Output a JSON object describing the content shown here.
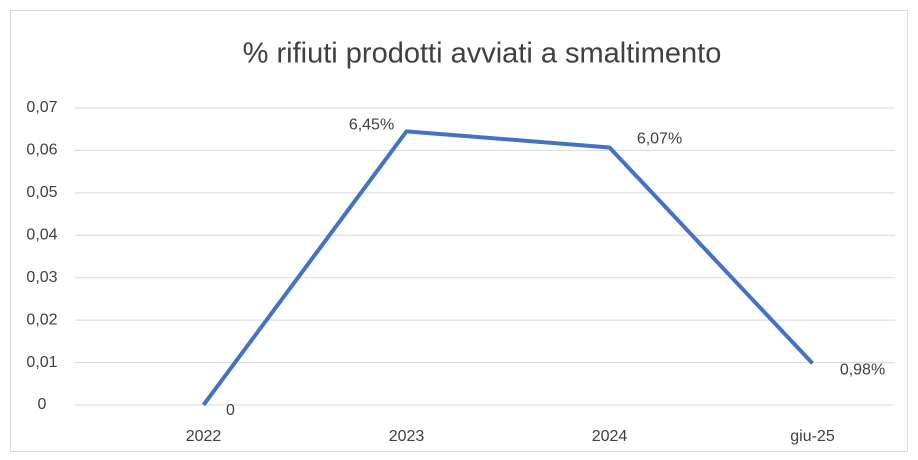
{
  "chart_data": {
    "type": "line",
    "title": "% rifiuti prodotti avviati a smaltimento",
    "categories": [
      "2022",
      "2023",
      "2024",
      "giu-25"
    ],
    "values": [
      0,
      0.0645,
      0.0607,
      0.0098
    ],
    "value_labels": [
      "0",
      "6,45%",
      "6,07%",
      "0,98%"
    ],
    "color": "#4472c4",
    "ylim": [
      0,
      0.07
    ],
    "yticks": [
      0,
      {
        "value": 0.01,
        "label": "0,01"
      },
      {
        "value": 0.02,
        "label": "0,02"
      },
      {
        "value": 0.03,
        "label": "0,03"
      },
      {
        "value": 0.04,
        "label": "0,04"
      },
      {
        "value": 0.05,
        "label": "0,05"
      },
      {
        "value": 0.06,
        "label": "0,06"
      },
      {
        "value": 0.07,
        "label": "0,07"
      }
    ],
    "grid": true
  }
}
